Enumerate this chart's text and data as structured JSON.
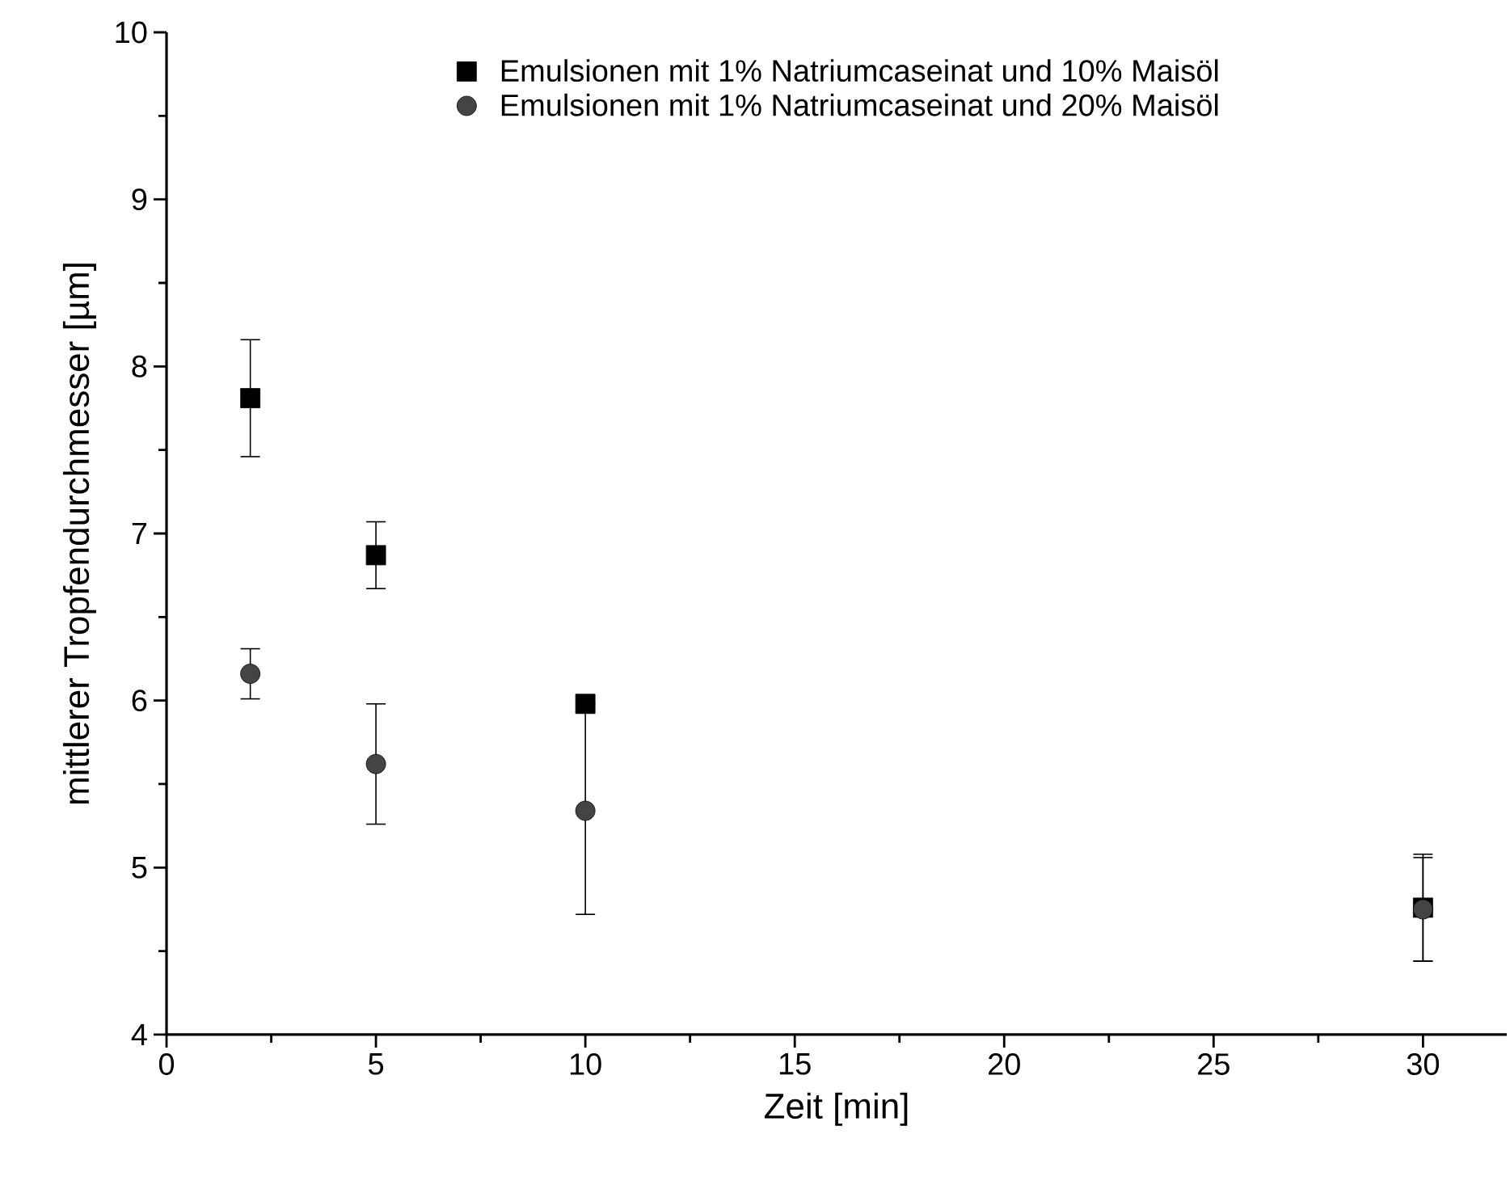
{
  "chart_data": {
    "type": "scatter",
    "xlabel": "Zeit [min]",
    "ylabel": "mittlerer Tropfendurchmesser [µm]",
    "x": [
      2,
      5,
      10,
      30
    ],
    "series": [
      {
        "name": "Emulsionen mit 1% Natriumcaseinat und 10% Maisöl",
        "color": "#000000",
        "marker": "square",
        "values": [
          7.81,
          6.87,
          5.98,
          4.76
        ],
        "errors": [
          0.35,
          0.2,
          null,
          0.32
        ]
      },
      {
        "name": "Emulsionen mit 1% Natriumcaseinat und 20% Maisöl",
        "color": "#444444",
        "marker": "circle",
        "values": [
          6.16,
          5.62,
          5.34,
          4.75
        ],
        "errors": [
          0.15,
          0.36,
          0.62,
          0.31
        ]
      }
    ],
    "xlim": [
      0,
      32
    ],
    "ylim": [
      4,
      10
    ],
    "xticks": [
      0,
      5,
      10,
      15,
      20,
      25,
      30
    ],
    "yticks": [
      4,
      5,
      6,
      7,
      8,
      9,
      10
    ],
    "grid": false,
    "legend": "top"
  }
}
